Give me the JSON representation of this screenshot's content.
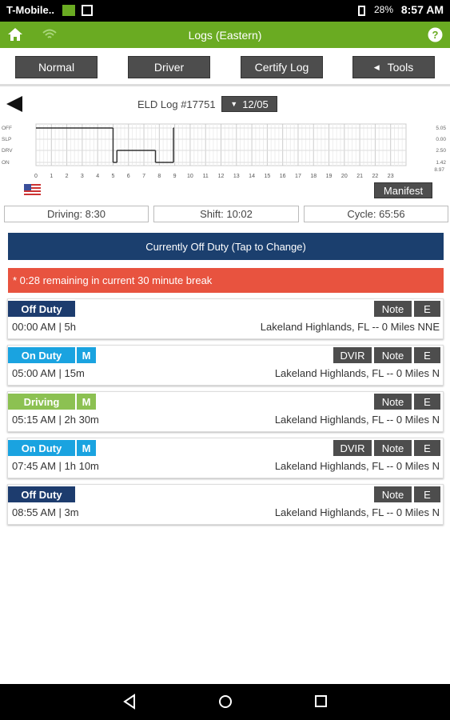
{
  "status_bar": {
    "carrier": "T-Mobile..",
    "battery": "28%",
    "time": "8:57 AM"
  },
  "header": {
    "title": "Logs (Eastern)"
  },
  "toolbar": [
    "Normal",
    "Driver",
    "Certify Log",
    "Tools"
  ],
  "log": {
    "title": "ELD Log #17751",
    "date": "12/05",
    "manifest": "Manifest"
  },
  "graph": {
    "hours": [
      0,
      1,
      2,
      3,
      4,
      5,
      6,
      7,
      8,
      9,
      10,
      11,
      12,
      13,
      14,
      15,
      16,
      17,
      18,
      19,
      20,
      21,
      22,
      23
    ],
    "rows": [
      {
        "label": "OFF",
        "total": "5.05",
        "spans": [
          [
            0,
            5
          ],
          [
            8.917,
            8.967
          ]
        ]
      },
      {
        "label": "SLP",
        "total": "0.00",
        "spans": []
      },
      {
        "label": "DRV",
        "total": "2.50",
        "spans": [
          [
            5.25,
            7.75
          ]
        ]
      },
      {
        "label": "ON",
        "total": "1.42",
        "spans": [
          [
            5,
            5.25
          ],
          [
            7.75,
            8.917
          ]
        ]
      }
    ],
    "total": "8.97"
  },
  "stats": [
    "Driving: 8:30",
    "Shift: 10:02",
    "Cycle: 65:56"
  ],
  "banner": "Currently Off Duty (Tap to Change)",
  "alert": "* 0:28 remaining in current 30 minute break",
  "events": [
    {
      "status": "Off Duty",
      "time": "00:00 AM | 5h",
      "location": "Lakeland Highlands, FL -- 0 Miles NNE",
      "buttons": [
        "Note",
        "E"
      ]
    },
    {
      "status": "On Duty",
      "flag": "M",
      "time": "05:00 AM | 15m",
      "location": "Lakeland Highlands, FL -- 0 Miles N",
      "buttons": [
        "DVIR",
        "Note",
        "E"
      ]
    },
    {
      "status": "Driving",
      "flag": "M",
      "time": "05:15 AM | 2h 30m",
      "location": "Lakeland Highlands, FL -- 0 Miles N",
      "buttons": [
        "Note",
        "E"
      ]
    },
    {
      "status": "On Duty",
      "flag": "M",
      "time": "07:45 AM | 1h 10m",
      "location": "Lakeland Highlands, FL -- 0 Miles N",
      "buttons": [
        "DVIR",
        "Note",
        "E"
      ]
    },
    {
      "status": "Off Duty",
      "time": "08:55 AM | 3m",
      "location": "Lakeland Highlands, FL -- 0 Miles N",
      "buttons": [
        "Note",
        "E"
      ]
    }
  ]
}
